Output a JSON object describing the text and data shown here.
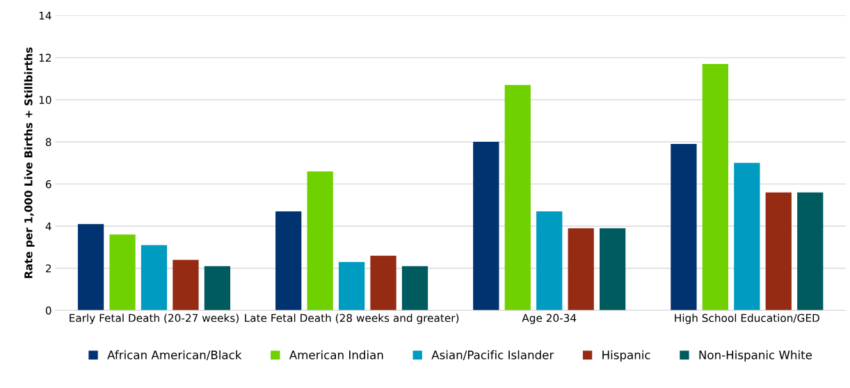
{
  "chart_data": {
    "type": "bar",
    "ylabel": "Rate per 1,000 Live Births + Stillbirths",
    "categories": [
      "Early Fetal Death (20-27 weeks)",
      "Late Fetal Death (28 weeks and greater)",
      "Age 20-34",
      "High School Education/GED"
    ],
    "series": [
      {
        "name": "African American/Black",
        "color": "#003370",
        "values": [
          4.1,
          4.7,
          8.0,
          7.9
        ]
      },
      {
        "name": "American Indian",
        "color": "#70d100",
        "values": [
          3.6,
          6.6,
          10.7,
          11.7
        ]
      },
      {
        "name": "Asian/Pacific Islander",
        "color": "#009bc1",
        "values": [
          3.1,
          2.3,
          4.7,
          7.0
        ]
      },
      {
        "name": "Hispanic",
        "color": "#962b13",
        "values": [
          2.4,
          2.6,
          3.9,
          5.6
        ]
      },
      {
        "name": "Non-Hispanic White",
        "color": "#005b5e",
        "values": [
          2.1,
          2.1,
          3.9,
          5.6
        ]
      }
    ],
    "ylim": [
      0,
      14
    ],
    "yticks": [
      0,
      2,
      4,
      6,
      8,
      10,
      12,
      14
    ],
    "grid": "y",
    "legend": "bottom"
  }
}
